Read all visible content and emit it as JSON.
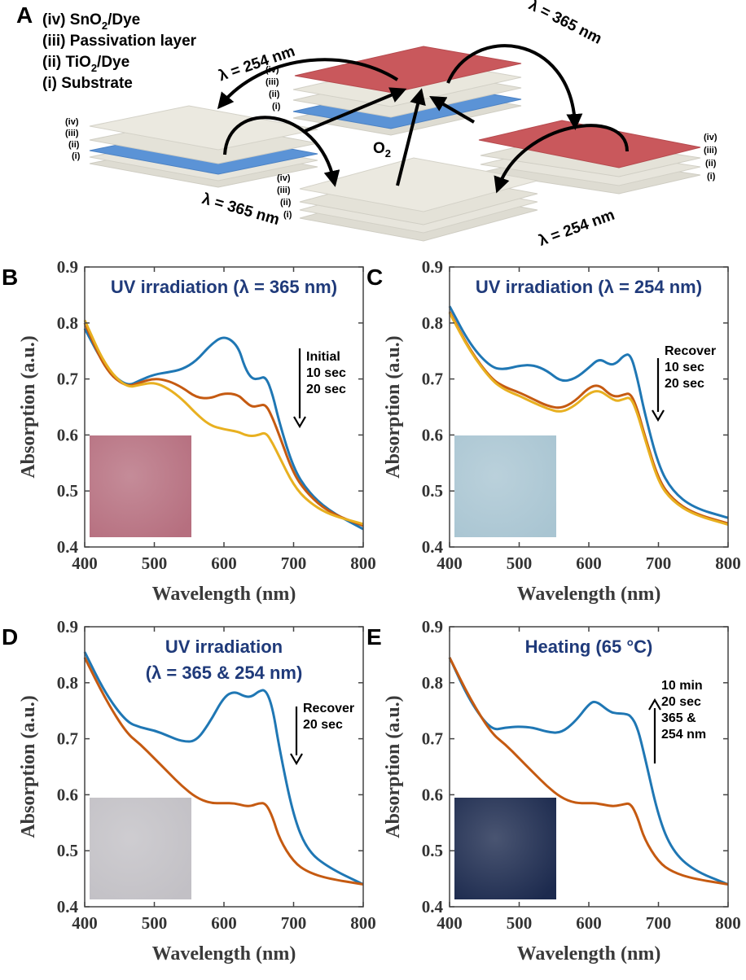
{
  "panel_a": {
    "letter": "A",
    "legend": [
      "(iv) SnO",
      "2",
      "/Dye",
      "(iii) Passivation layer",
      "(ii) TiO",
      "2",
      "/Dye",
      "(i) Substrate"
    ],
    "layer_labels": [
      "(iv)",
      "(iii)",
      "(ii)",
      "(i)"
    ],
    "lambda_254": "λ = 254 nm",
    "lambda_365": "λ = 365 nm",
    "o2": "O",
    "o2_sub": "2",
    "colors": {
      "red": "#c9585c",
      "blue": "#5b93d6",
      "cream": "#e9e7dd"
    }
  },
  "chart_data": [
    {
      "type": "line",
      "letter": "B",
      "title": "UV irradiation (λ = 365 nm)",
      "xlabel": "Wavelength (nm)",
      "ylabel": "Absorption (a.u.)",
      "xlim": [
        400,
        800
      ],
      "ylim": [
        0.4,
        0.9
      ],
      "xticks": [
        "400",
        "500",
        "600",
        "700",
        "800"
      ],
      "yticks": [
        "0.4",
        "0.5",
        "0.6",
        "0.7",
        "0.8",
        "0.9"
      ],
      "annotation": [
        "Initial",
        "10 sec",
        "20 sec"
      ],
      "arrow": "down",
      "inset_color": "#b66f7f",
      "series": [
        {
          "name": "Initial",
          "color": "#1f77b4",
          "x": [
            400,
            430,
            460,
            480,
            500,
            520,
            540,
            560,
            580,
            600,
            620,
            630,
            640,
            650,
            660,
            670,
            680,
            700,
            720,
            750,
            800
          ],
          "y": [
            0.79,
            0.72,
            0.686,
            0.698,
            0.708,
            0.712,
            0.717,
            0.732,
            0.76,
            0.778,
            0.76,
            0.72,
            0.7,
            0.7,
            0.705,
            0.672,
            0.62,
            0.54,
            0.5,
            0.465,
            0.432
          ]
        },
        {
          "name": "10 sec",
          "color": "#c55a11",
          "x": [
            400,
            430,
            460,
            480,
            500,
            520,
            540,
            560,
            580,
            600,
            620,
            630,
            640,
            650,
            660,
            670,
            680,
            700,
            720,
            750,
            800
          ],
          "y": [
            0.8,
            0.715,
            0.685,
            0.694,
            0.701,
            0.697,
            0.685,
            0.667,
            0.665,
            0.675,
            0.672,
            0.66,
            0.65,
            0.652,
            0.655,
            0.63,
            0.598,
            0.53,
            0.495,
            0.462,
            0.438
          ]
        },
        {
          "name": "20 sec",
          "color": "#e8b020",
          "x": [
            400,
            430,
            460,
            480,
            500,
            520,
            540,
            560,
            580,
            600,
            620,
            630,
            640,
            650,
            660,
            670,
            680,
            700,
            720,
            750,
            800
          ],
          "y": [
            0.805,
            0.722,
            0.684,
            0.69,
            0.694,
            0.683,
            0.664,
            0.638,
            0.617,
            0.61,
            0.606,
            0.6,
            0.598,
            0.6,
            0.605,
            0.585,
            0.56,
            0.51,
            0.482,
            0.458,
            0.441
          ]
        }
      ]
    },
    {
      "type": "line",
      "letter": "C",
      "title": "UV irradiation (λ = 254 nm)",
      "xlabel": "Wavelength (nm)",
      "ylabel": "Absorption (a.u.)",
      "xlim": [
        400,
        800
      ],
      "ylim": [
        0.4,
        0.9
      ],
      "xticks": [
        "400",
        "500",
        "600",
        "700",
        "800"
      ],
      "yticks": [
        "0.4",
        "0.5",
        "0.6",
        "0.7",
        "0.8",
        "0.9"
      ],
      "annotation": [
        "Recover",
        "10 sec",
        "20 sec"
      ],
      "arrow": "down",
      "inset_color": "#a9c5d2",
      "series": [
        {
          "name": "Recover",
          "color": "#1f77b4",
          "x": [
            400,
            430,
            460,
            480,
            500,
            520,
            540,
            560,
            580,
            600,
            615,
            630,
            640,
            650,
            660,
            670,
            680,
            700,
            720,
            750,
            800
          ],
          "y": [
            0.83,
            0.76,
            0.72,
            0.717,
            0.724,
            0.725,
            0.715,
            0.695,
            0.7,
            0.72,
            0.737,
            0.725,
            0.728,
            0.742,
            0.745,
            0.7,
            0.64,
            0.545,
            0.5,
            0.47,
            0.452
          ]
        },
        {
          "name": "10 sec",
          "color": "#c55a11",
          "x": [
            400,
            430,
            460,
            480,
            500,
            520,
            540,
            560,
            580,
            600,
            615,
            630,
            640,
            650,
            660,
            670,
            680,
            700,
            720,
            750,
            800
          ],
          "y": [
            0.82,
            0.75,
            0.7,
            0.685,
            0.676,
            0.664,
            0.652,
            0.647,
            0.66,
            0.685,
            0.69,
            0.672,
            0.668,
            0.672,
            0.675,
            0.645,
            0.6,
            0.52,
            0.485,
            0.46,
            0.442
          ]
        },
        {
          "name": "20 sec",
          "color": "#e8b020",
          "x": [
            400,
            430,
            460,
            480,
            500,
            520,
            540,
            560,
            580,
            600,
            615,
            630,
            640,
            650,
            660,
            670,
            680,
            700,
            720,
            750,
            800
          ],
          "y": [
            0.818,
            0.748,
            0.698,
            0.68,
            0.67,
            0.658,
            0.647,
            0.64,
            0.652,
            0.675,
            0.68,
            0.667,
            0.66,
            0.664,
            0.668,
            0.638,
            0.595,
            0.515,
            0.482,
            0.458,
            0.44
          ]
        }
      ]
    },
    {
      "type": "line",
      "letter": "D",
      "title": "UV irradiation",
      "title2": "(λ = 365 & 254 nm)",
      "xlabel": "Wavelength (nm)",
      "ylabel": "Absorption (a.u.)",
      "xlim": [
        400,
        800
      ],
      "ylim": [
        0.4,
        0.9
      ],
      "xticks": [
        "400",
        "500",
        "600",
        "700",
        "800"
      ],
      "yticks": [
        "0.4",
        "0.5",
        "0.6",
        "0.7",
        "0.8",
        "0.9"
      ],
      "annotation": [
        "Recover",
        "20 sec"
      ],
      "arrow": "down",
      "inset_color": "#c2c0c5",
      "series": [
        {
          "name": "Recover",
          "color": "#1f77b4",
          "x": [
            400,
            430,
            460,
            480,
            500,
            520,
            540,
            560,
            580,
            600,
            615,
            630,
            640,
            650,
            660,
            670,
            680,
            700,
            720,
            750,
            800
          ],
          "y": [
            0.855,
            0.78,
            0.73,
            0.72,
            0.715,
            0.705,
            0.695,
            0.695,
            0.73,
            0.775,
            0.785,
            0.775,
            0.775,
            0.785,
            0.788,
            0.755,
            0.68,
            0.56,
            0.5,
            0.47,
            0.44
          ]
        },
        {
          "name": "20 sec",
          "color": "#c55a11",
          "x": [
            400,
            430,
            460,
            480,
            500,
            520,
            540,
            560,
            580,
            600,
            615,
            630,
            640,
            650,
            660,
            670,
            680,
            700,
            720,
            750,
            800
          ],
          "y": [
            0.845,
            0.77,
            0.71,
            0.69,
            0.665,
            0.64,
            0.615,
            0.595,
            0.585,
            0.585,
            0.585,
            0.58,
            0.58,
            0.585,
            0.585,
            0.56,
            0.52,
            0.48,
            0.462,
            0.45,
            0.44
          ]
        }
      ]
    },
    {
      "type": "line",
      "letter": "E",
      "title": "Heating (65 °C)",
      "xlabel": "Wavelength (nm)",
      "ylabel": "Absorption (a.u.)",
      "xlim": [
        400,
        800
      ],
      "ylim": [
        0.4,
        0.9
      ],
      "xticks": [
        "400",
        "500",
        "600",
        "700",
        "800"
      ],
      "yticks": [
        "0.4",
        "0.5",
        "0.6",
        "0.7",
        "0.8",
        "0.9"
      ],
      "annotation": [
        "10 min",
        "20 sec",
        "365 &",
        "254 nm"
      ],
      "arrow": "up",
      "inset_color": "#1c2a4e",
      "series": [
        {
          "name": "10 min",
          "color": "#1f77b4",
          "x": [
            400,
            430,
            460,
            480,
            500,
            520,
            540,
            560,
            580,
            600,
            610,
            630,
            640,
            650,
            660,
            670,
            680,
            700,
            720,
            750,
            800
          ],
          "y": [
            0.845,
            0.765,
            0.715,
            0.72,
            0.722,
            0.72,
            0.712,
            0.71,
            0.73,
            0.762,
            0.768,
            0.748,
            0.745,
            0.745,
            0.742,
            0.72,
            0.67,
            0.56,
            0.5,
            0.465,
            0.44
          ]
        },
        {
          "name": "20 sec 365 & 254 nm",
          "color": "#c55a11",
          "x": [
            400,
            430,
            460,
            480,
            500,
            520,
            540,
            560,
            580,
            600,
            610,
            630,
            640,
            650,
            660,
            670,
            680,
            700,
            720,
            750,
            800
          ],
          "y": [
            0.845,
            0.77,
            0.71,
            0.69,
            0.665,
            0.64,
            0.615,
            0.595,
            0.585,
            0.585,
            0.585,
            0.58,
            0.58,
            0.583,
            0.585,
            0.56,
            0.52,
            0.48,
            0.462,
            0.45,
            0.44
          ]
        }
      ]
    }
  ]
}
